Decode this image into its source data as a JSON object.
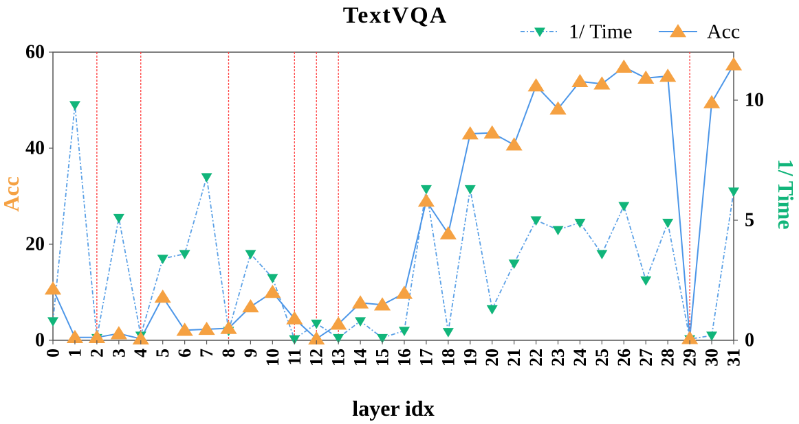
{
  "chart_data": {
    "type": "line",
    "title": "TextVQA",
    "xlabel": "layer idx",
    "ylabel_left": "Acc",
    "ylabel_right": "1/ Time",
    "categories": [
      "0",
      "1",
      "2",
      "3",
      "4",
      "5",
      "6",
      "7",
      "8",
      "9",
      "10",
      "11",
      "12",
      "13",
      "14",
      "15",
      "16",
      "17",
      "18",
      "19",
      "20",
      "21",
      "22",
      "23",
      "24",
      "25",
      "26",
      "27",
      "28",
      "29",
      "30",
      "31"
    ],
    "ylim_left": [
      0,
      60
    ],
    "ylim_right": [
      0,
      12
    ],
    "yticks_left": [
      "0",
      "20",
      "40",
      "60"
    ],
    "yticks_right": [
      "0",
      "5",
      "10"
    ],
    "series": [
      {
        "name": "1/ Time",
        "axis": "right",
        "marker": "triangle-down",
        "linestyle": "dash-dot",
        "color": "#5aa0e6",
        "marker_color": "#11b57a",
        "values": [
          0.8,
          9.8,
          0.1,
          5.1,
          0.2,
          3.4,
          3.6,
          6.8,
          0.4,
          3.6,
          2.6,
          0.05,
          0.7,
          0.1,
          0.8,
          0.1,
          0.4,
          6.3,
          0.35,
          6.3,
          1.3,
          3.2,
          5.0,
          4.6,
          4.9,
          3.6,
          5.6,
          2.5,
          4.9,
          0.05,
          0.2,
          6.2
        ]
      },
      {
        "name": "Acc",
        "axis": "left",
        "marker": "triangle-up",
        "linestyle": "solid",
        "color": "#4c96e8",
        "marker_color": "#f5a142",
        "values": [
          10.7,
          0.6,
          0.6,
          1.4,
          0.3,
          9.0,
          2.1,
          2.3,
          2.5,
          7.0,
          10.0,
          4.5,
          0.3,
          3.4,
          7.8,
          7.4,
          9.8,
          29.0,
          22.2,
          43.0,
          43.2,
          40.7,
          53.0,
          48.2,
          53.9,
          53.4,
          56.9,
          54.6,
          55.0,
          0.4,
          49.5,
          57.4
        ]
      }
    ],
    "vlines_at": [
      "2",
      "4",
      "8",
      "11",
      "12",
      "13",
      "29"
    ],
    "vline_color": "#ff3b3b",
    "legend": "top-right",
    "grid": false,
    "colors": {
      "left_axis_label": "#f5a142",
      "right_axis_label": "#11b57a",
      "text": "#000000"
    }
  }
}
